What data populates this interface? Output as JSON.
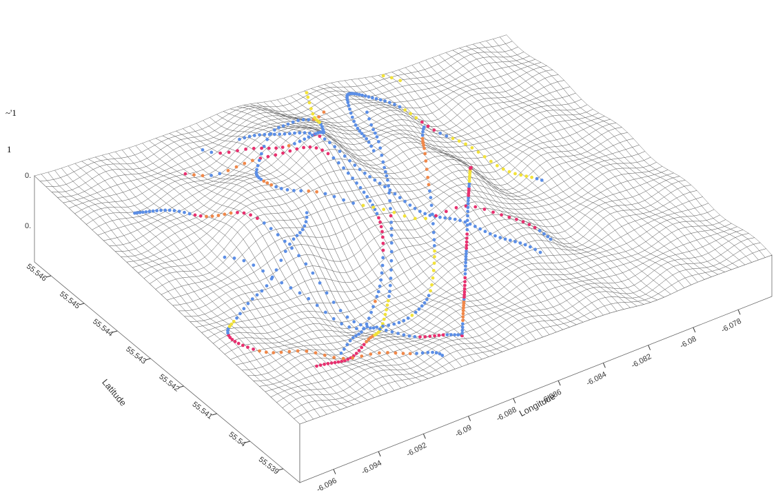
{
  "chart_data": {
    "type": "surface3d",
    "x_label": "Longitude",
    "y_label": "Latitude",
    "xlim": [
      -6.0975,
      -6.0765
    ],
    "xticks": [
      -6.096,
      -6.094,
      -6.092,
      -6.09,
      -6.088,
      -6.086,
      -6.084,
      -6.082,
      -6.08,
      -6.078
    ],
    "ylim": [
      55.5385,
      55.5465
    ],
    "yticks": [
      55.539,
      55.54,
      55.541,
      55.542,
      55.543,
      55.544,
      55.545,
      55.546
    ],
    "annotations": [
      "~'1",
      "1",
      "0.",
      "0."
    ]
  }
}
